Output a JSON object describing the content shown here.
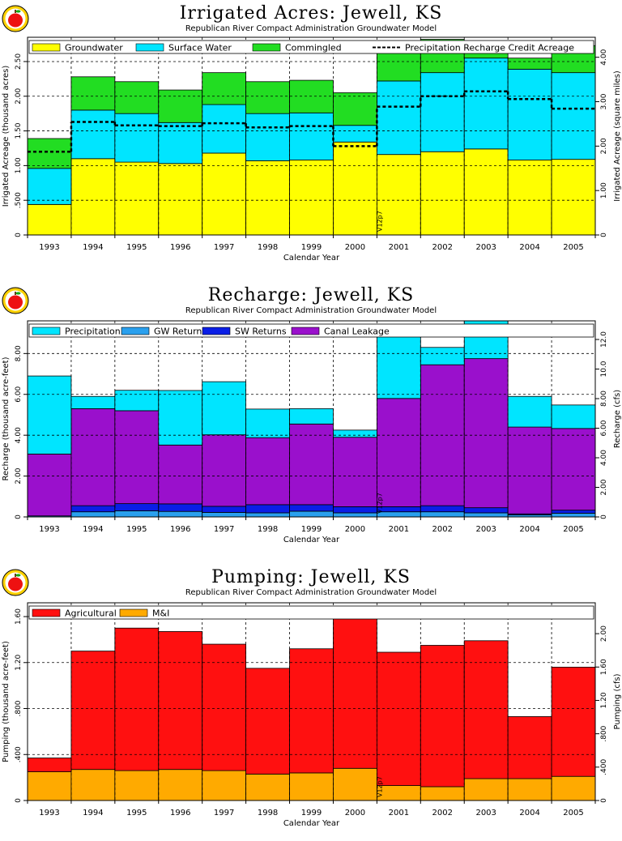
{
  "colors": {
    "groundwater": "#ffff00",
    "surface_water": "#00e5ff",
    "commingled": "#22dd22",
    "precipitation": "#00e5ff",
    "gw_returns": "#2aa0ee",
    "sw_returns": "#0a1ee6",
    "canal_leakage": "#9a10cc",
    "agricultural": "#ff1010",
    "mi": "#ffaa00"
  },
  "logo_icon": "apple-logo-icon",
  "chart_data": [
    {
      "id": "irrigated",
      "type": "area",
      "title": "Irrigated Acres: Jewell, KS",
      "subtitle": "Republican River Compact Administration Groundwater Model",
      "xlabel": "Calendar Year",
      "ylabel": "Irrigated Acreage (thousand acres)",
      "ylabel_right": "Irrigated Acreage (square miles)",
      "categories": [
        "1993",
        "1994",
        "1995",
        "1996",
        "1997",
        "1998",
        "1999",
        "2000",
        "2001",
        "2002",
        "2003",
        "2004",
        "2005"
      ],
      "ylim": [
        0,
        2.85
      ],
      "yticks": [
        0,
        0.5,
        1.0,
        1.5,
        2.0,
        2.5
      ],
      "yticklabels": [
        "0",
        ".500",
        "1.00",
        "1.50",
        "2.00",
        "2.50"
      ],
      "right_ylim": [
        0,
        4.45
      ],
      "right_yticks": [
        0,
        1.0,
        2.0,
        3.0,
        4.0
      ],
      "right_yticklabels": [
        "0",
        "1.00",
        "2.00",
        "3.00",
        "4.00"
      ],
      "annotation": "V12p7",
      "legend": [
        "Groundwater",
        "Surface Water",
        "Commingled",
        "Precipitation Recharge Credit Acreage"
      ],
      "series": [
        {
          "name": "Groundwater",
          "color_key": "groundwater",
          "values": [
            0.44,
            1.1,
            1.05,
            1.03,
            1.18,
            1.07,
            1.08,
            1.34,
            1.16,
            1.2,
            1.24,
            1.08,
            1.09
          ]
        },
        {
          "name": "Surface Water",
          "color_key": "surface_water",
          "values": [
            0.52,
            0.7,
            0.7,
            0.59,
            0.7,
            0.68,
            0.68,
            0.24,
            1.06,
            1.14,
            1.31,
            1.31,
            1.25
          ]
        },
        {
          "name": "Commingled",
          "color_key": "commingled",
          "values": [
            0.43,
            0.48,
            0.46,
            0.47,
            0.46,
            0.46,
            0.47,
            0.47,
            0.48,
            0.48,
            0.16,
            0.16,
            0.39
          ]
        }
      ],
      "line_series": {
        "name": "Precipitation Recharge Credit Acreage",
        "values": [
          1.2,
          1.63,
          1.58,
          1.57,
          1.61,
          1.55,
          1.57,
          1.28,
          1.85,
          2.0,
          2.07,
          1.96,
          1.82
        ]
      }
    },
    {
      "id": "recharge",
      "type": "area",
      "title": "Recharge: Jewell, KS",
      "subtitle": "Republican River Compact Administration Groundwater Model",
      "xlabel": "Calendar Year",
      "ylabel": "Recharge (thousand acre-feet)",
      "ylabel_right": "Recharge (cfs)",
      "categories": [
        "1993",
        "1994",
        "1995",
        "1996",
        "1997",
        "1998",
        "1999",
        "2000",
        "2001",
        "2002",
        "2003",
        "2004",
        "2005"
      ],
      "ylim": [
        0,
        9.6
      ],
      "yticks": [
        0,
        2,
        4,
        6,
        8
      ],
      "yticklabels": [
        "0",
        "2.00",
        "4.00",
        "6.00",
        "8.00"
      ],
      "right_ylim": [
        0,
        13.26
      ],
      "right_yticks": [
        0,
        2,
        4,
        6,
        8,
        10,
        12
      ],
      "right_yticklabels": [
        "0",
        "2.00",
        "4.00",
        "6.00",
        "8.00",
        "10.0",
        "12.0"
      ],
      "annotation": "V12p7",
      "legend": [
        "Precipitation",
        "GW Returns",
        "SW Returns",
        "Canal Leakage"
      ],
      "series": [
        {
          "name": "GW Returns",
          "color_key": "gw_returns",
          "values": [
            0.05,
            0.25,
            0.3,
            0.27,
            0.22,
            0.2,
            0.28,
            0.2,
            0.25,
            0.25,
            0.2,
            0.1,
            0.18
          ]
        },
        {
          "name": "SW Returns",
          "color_key": "sw_returns",
          "values": [
            0.0,
            0.3,
            0.35,
            0.37,
            0.3,
            0.4,
            0.32,
            0.3,
            0.25,
            0.3,
            0.25,
            0.05,
            0.15
          ]
        },
        {
          "name": "Canal Leakage",
          "color_key": "canal_leakage",
          "values": [
            3.03,
            4.75,
            4.55,
            2.88,
            3.5,
            3.28,
            3.95,
            3.4,
            5.3,
            6.9,
            7.3,
            4.25,
            4.0
          ]
        },
        {
          "name": "Precipitation",
          "color_key": "precipitation",
          "values": [
            3.82,
            0.6,
            1.0,
            2.67,
            2.6,
            1.4,
            0.75,
            0.35,
            3.4,
            0.85,
            1.85,
            1.5,
            1.15
          ]
        }
      ]
    },
    {
      "id": "pumping",
      "type": "area",
      "title": "Pumping: Jewell, KS",
      "subtitle": "Republican River Compact Administration Groundwater Model",
      "xlabel": "Calendar Year",
      "ylabel": "Pumping (thousand acre-feet)",
      "ylabel_right": "Pumping (cfs)",
      "categories": [
        "1993",
        "1994",
        "1995",
        "1996",
        "1997",
        "1998",
        "1999",
        "2000",
        "2001",
        "2002",
        "2003",
        "2004",
        "2005"
      ],
      "ylim": [
        0,
        1.72
      ],
      "yticks": [
        0,
        0.4,
        0.8,
        1.2,
        1.6
      ],
      "yticklabels": [
        "0",
        ".400",
        ".800",
        "1.20",
        "1.60"
      ],
      "right_ylim": [
        0,
        2.37
      ],
      "right_yticks": [
        0,
        0.4,
        0.8,
        1.2,
        1.6,
        2.0
      ],
      "right_yticklabels": [
        "0",
        ".400",
        ".800",
        "1.20",
        "1.60",
        "2.00"
      ],
      "annotation": "V12p7",
      "legend": [
        "Agricultural",
        "M&I"
      ],
      "series": [
        {
          "name": "M&I",
          "color_key": "mi",
          "values": [
            0.25,
            0.27,
            0.26,
            0.27,
            0.26,
            0.23,
            0.24,
            0.28,
            0.13,
            0.12,
            0.19,
            0.19,
            0.21
          ]
        },
        {
          "name": "Agricultural",
          "color_key": "agricultural",
          "values": [
            0.12,
            1.03,
            1.24,
            1.2,
            1.1,
            0.92,
            1.08,
            1.39,
            1.16,
            1.23,
            1.2,
            0.54,
            0.95
          ]
        }
      ]
    }
  ]
}
